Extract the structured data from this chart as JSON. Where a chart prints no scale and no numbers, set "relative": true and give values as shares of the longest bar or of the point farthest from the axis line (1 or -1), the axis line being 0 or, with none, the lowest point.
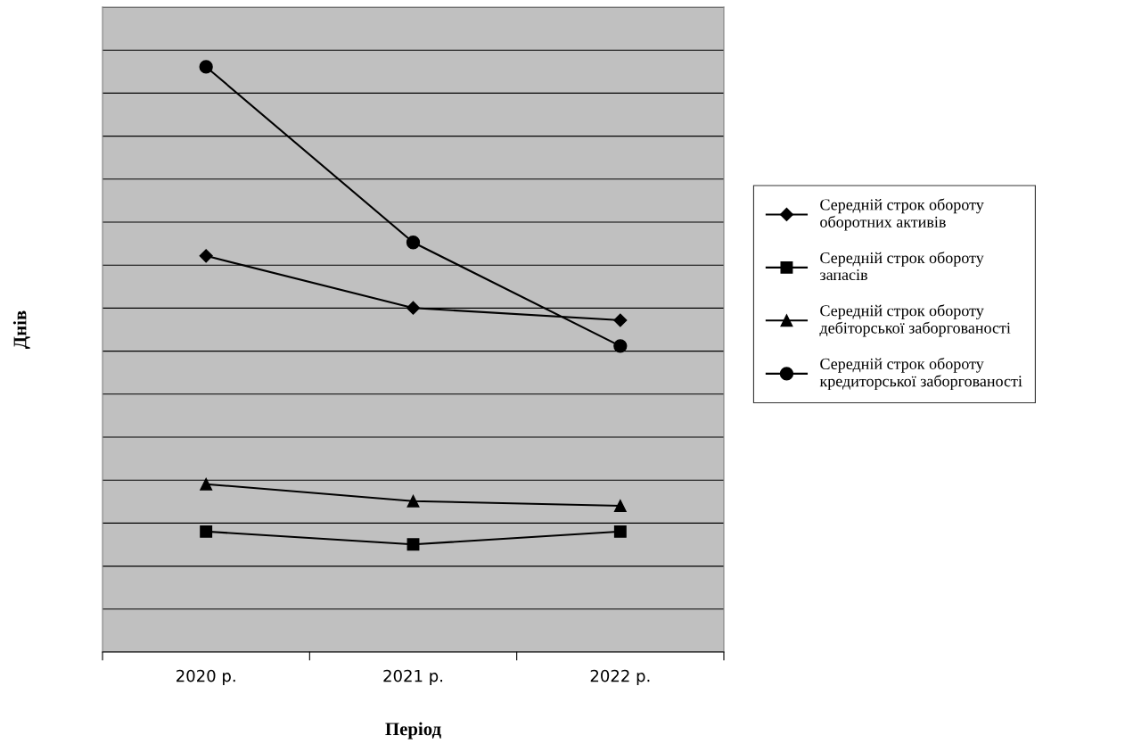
{
  "chart_data": {
    "type": "line",
    "relative": true,
    "xlabel": "Період",
    "ylabel": "Днів",
    "categories": [
      "2020 р.",
      "2021 р.",
      "2022 р."
    ],
    "series": [
      {
        "name": "Середній строк обороту оборотних активів",
        "color": "#000000",
        "marker": "diamond",
        "values": [
          0.677,
          0.588,
          0.567
        ]
      },
      {
        "name": "Середній строк обороту запасів",
        "color": "#000000",
        "marker": "square",
        "values": [
          0.206,
          0.184,
          0.206
        ]
      },
      {
        "name": "Середній строк обороту дебіторської заборгованості",
        "color": "#000000",
        "marker": "triangle",
        "values": [
          0.287,
          0.258,
          0.25
        ]
      },
      {
        "name": "Середній строк обороту кредиторської заборгованості",
        "color": "#000000",
        "marker": "circle",
        "values": [
          1,
          0.7,
          0.523
        ]
      }
    ],
    "grid": "y",
    "legend": "right",
    "line_style": "solid"
  }
}
